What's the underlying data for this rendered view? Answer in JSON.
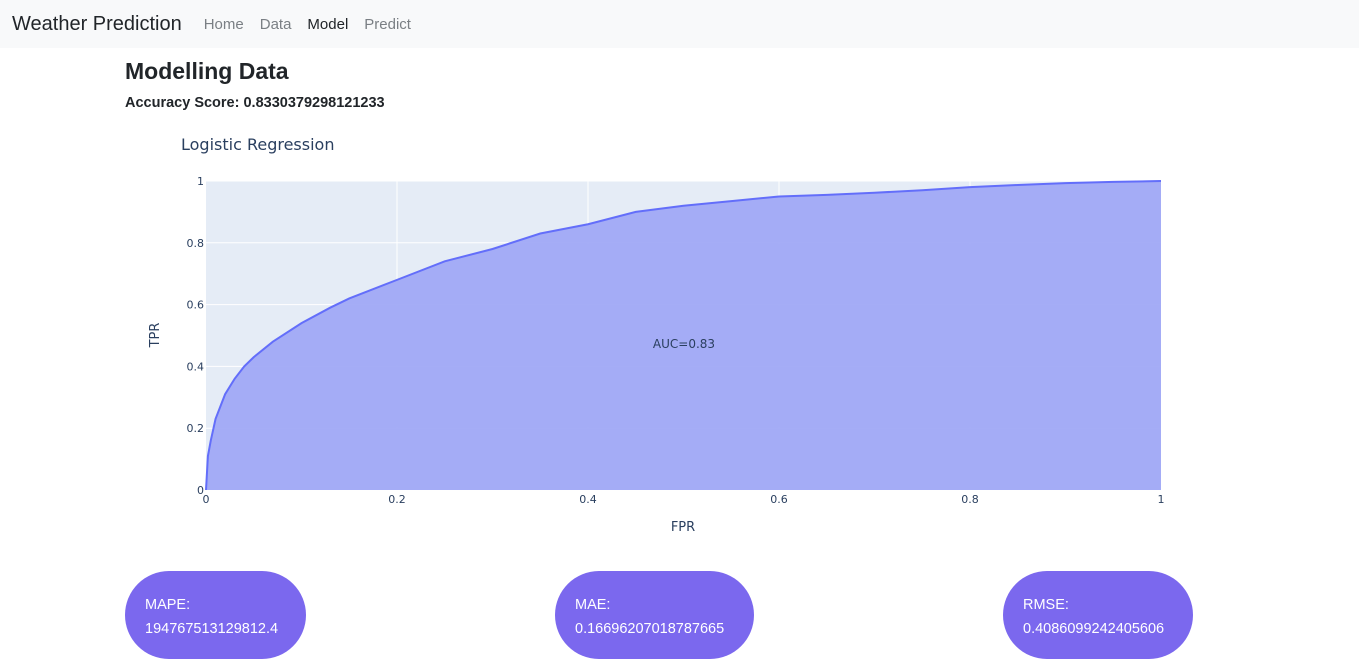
{
  "navbar": {
    "brand": "Weather Prediction",
    "links": [
      "Home",
      "Data",
      "Model",
      "Predict"
    ],
    "active": "Model"
  },
  "page": {
    "title": "Modelling Data",
    "accuracy_text": "Accuracy Score: 0.8330379298121233"
  },
  "chart_data": {
    "type": "area",
    "title": "Logistic Regression",
    "xlabel": "FPR",
    "ylabel": "TPR",
    "xlim": [
      0,
      1
    ],
    "ylim": [
      0,
      1
    ],
    "x_ticks": [
      "0",
      "0.2",
      "0.4",
      "0.6",
      "0.8",
      "1"
    ],
    "y_ticks": [
      "0",
      "0.2",
      "0.4",
      "0.6",
      "0.8",
      "1"
    ],
    "grid": true,
    "annotation": "AUC=0.83",
    "fill_color": "#a0a9f5",
    "line_color": "#636efa",
    "plot_bg": "#e5ecf6",
    "series": [
      {
        "x": [
          0,
          0.002,
          0.005,
          0.01,
          0.02,
          0.03,
          0.04,
          0.05,
          0.07,
          0.1,
          0.13,
          0.15,
          0.2,
          0.25,
          0.3,
          0.35,
          0.4,
          0.45,
          0.5,
          0.55,
          0.6,
          0.65,
          0.7,
          0.75,
          0.8,
          0.85,
          0.9,
          0.95,
          1.0
        ],
        "y": [
          0,
          0.11,
          0.16,
          0.23,
          0.31,
          0.36,
          0.4,
          0.43,
          0.48,
          0.54,
          0.59,
          0.62,
          0.68,
          0.74,
          0.78,
          0.83,
          0.86,
          0.9,
          0.92,
          0.935,
          0.95,
          0.955,
          0.962,
          0.97,
          0.98,
          0.987,
          0.993,
          0.997,
          1.0
        ]
      }
    ]
  },
  "metrics": [
    {
      "label": "MAPE:",
      "value": "194767513129812.4"
    },
    {
      "label": "MAE:",
      "value": "0.16696207018787665"
    },
    {
      "label": "RMSE:",
      "value": "0.4086099242405606"
    }
  ]
}
